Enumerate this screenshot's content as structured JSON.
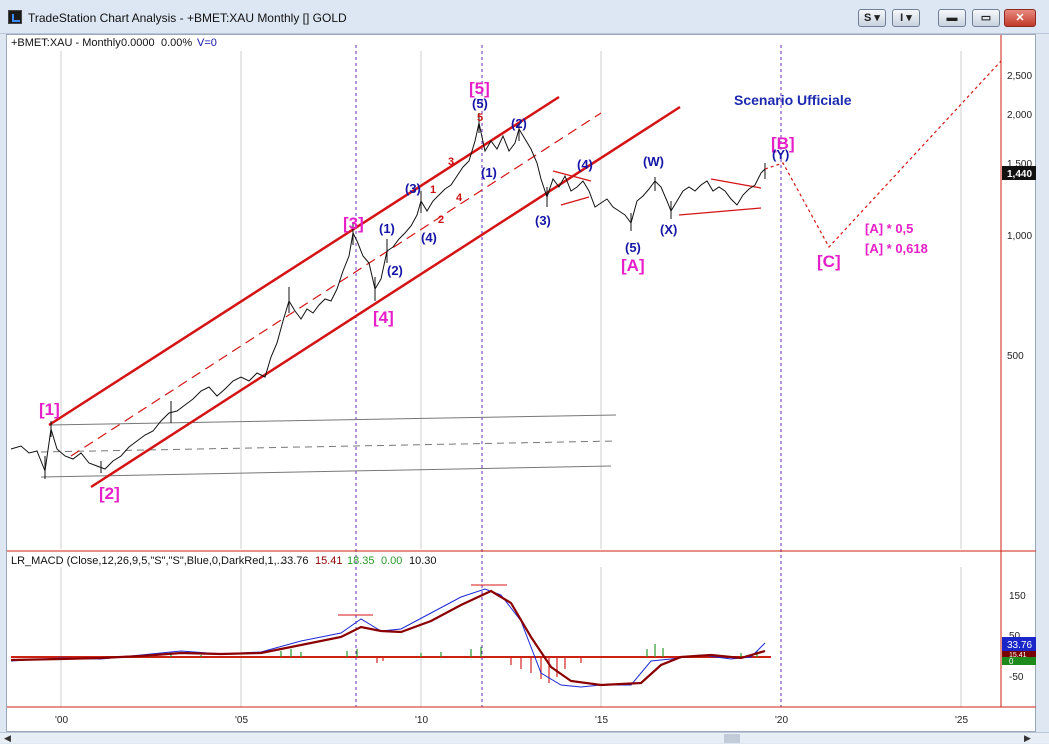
{
  "window": {
    "title": "TradeStation Chart Analysis - +BMET:XAU Monthly [] GOLD",
    "buttons": {
      "s": "S",
      "i": "I"
    }
  },
  "chart_header": {
    "symbol": "+BMET:XAU - Monthly",
    "price": "0.0000",
    "change": "0.00%",
    "volume": "V=0"
  },
  "price_axis": {
    "ticks": [
      "2,500",
      "2,000",
      "1,500",
      "1,000",
      "500"
    ],
    "last": "1,440"
  },
  "time_axis": {
    "ticks": [
      "'00",
      "'05",
      "'10",
      "'15",
      "'20",
      "'25"
    ]
  },
  "scenario": "Scenario Ufficiale",
  "wave_labels": {
    "primary": [
      "[1]",
      "[2]",
      "[3]",
      "[4]",
      "[5]",
      "[A]",
      "[B]",
      "[C]"
    ],
    "intermediate": [
      "(1)",
      "(2)",
      "(3)",
      "(4)",
      "(5)",
      "(1)",
      "(2)",
      "(3)",
      "(4)",
      "(5)",
      "(W)",
      "(X)",
      "(Y)"
    ],
    "minor": [
      "1",
      "2",
      "3",
      "4",
      "5"
    ]
  },
  "targets": {
    "half": "[A] * 0,5",
    "golden": "[A] * 0,618"
  },
  "macd": {
    "header": "LR_MACD (Close,12,26,9,5,\"S\",\"S\",Blue,0,DarkRed,1,...",
    "values": [
      "33.76",
      "15.41",
      "18.35",
      "0.00",
      "10.30"
    ],
    "axis": [
      "150",
      "50",
      "-50"
    ],
    "badges": [
      "33.76",
      "15.41",
      "0"
    ]
  },
  "colors": {
    "channel": "#d41414",
    "wave_blue": "#1515a8",
    "wave_magenta": "#e61fc8",
    "macd_signal": "#8b0000",
    "macd_line": "#1c2ad6",
    "hist_pos": "#2a9a2a",
    "hist_neg": "#d22222"
  }
}
